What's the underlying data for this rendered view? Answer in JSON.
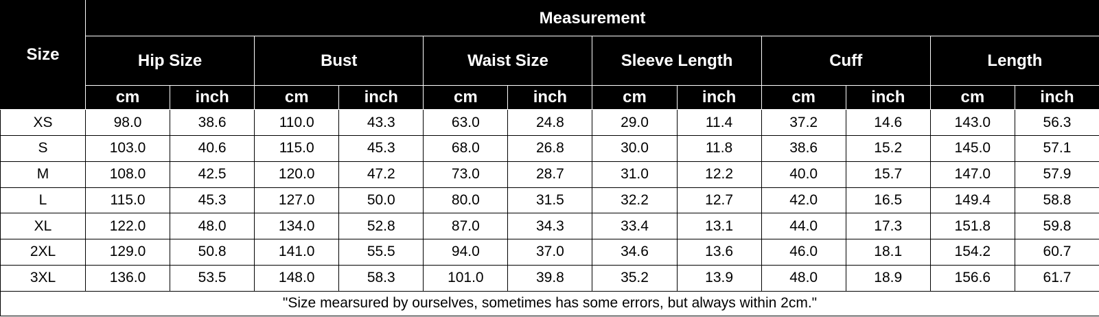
{
  "table": {
    "size_label": "Size",
    "group_label": "Measurement",
    "groups": [
      "Hip Size",
      "Bust",
      "Waist Size",
      "Sleeve Length",
      "Cuff",
      "Length"
    ],
    "units": [
      "cm",
      "inch",
      "cm",
      "inch",
      "cm",
      "inch",
      "cm",
      "inch",
      "cm",
      "inch",
      "cm",
      "inch"
    ],
    "rows": [
      [
        "XS",
        "98.0",
        "38.6",
        "110.0",
        "43.3",
        "63.0",
        "24.8",
        "29.0",
        "11.4",
        "37.2",
        "14.6",
        "143.0",
        "56.3"
      ],
      [
        "S",
        "103.0",
        "40.6",
        "115.0",
        "45.3",
        "68.0",
        "26.8",
        "30.0",
        "11.8",
        "38.6",
        "15.2",
        "145.0",
        "57.1"
      ],
      [
        "M",
        "108.0",
        "42.5",
        "120.0",
        "47.2",
        "73.0",
        "28.7",
        "31.0",
        "12.2",
        "40.0",
        "15.7",
        "147.0",
        "57.9"
      ],
      [
        "L",
        "115.0",
        "45.3",
        "127.0",
        "50.0",
        "80.0",
        "31.5",
        "32.2",
        "12.7",
        "42.0",
        "16.5",
        "149.4",
        "58.8"
      ],
      [
        "XL",
        "122.0",
        "48.0",
        "134.0",
        "52.8",
        "87.0",
        "34.3",
        "33.4",
        "13.1",
        "44.0",
        "17.3",
        "151.8",
        "59.8"
      ],
      [
        "2XL",
        "129.0",
        "50.8",
        "141.0",
        "55.5",
        "94.0",
        "37.0",
        "34.6",
        "13.6",
        "46.0",
        "18.1",
        "154.2",
        "60.7"
      ],
      [
        "3XL",
        "136.0",
        "53.5",
        "148.0",
        "58.3",
        "101.0",
        "39.8",
        "35.2",
        "13.9",
        "48.0",
        "18.9",
        "156.6",
        "61.7"
      ]
    ],
    "note": "\"Size mearsured by ourselves, sometimes has some errors, but always within 2cm.\""
  }
}
